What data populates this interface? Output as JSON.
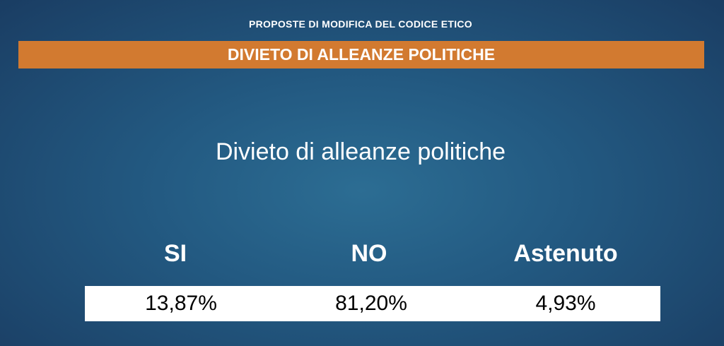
{
  "header": {
    "title": "PROPOSTE DI MODIFICA DEL CODICE ETICO",
    "banner": "DIVIETO DI ALLEANZE POLITICHE"
  },
  "subtitle": "Divieto di alleanze politiche",
  "table": {
    "headers": [
      "SI",
      "NO",
      "Astenuto"
    ],
    "rows": [
      [
        "13,87%",
        "81,20%",
        "4,93%"
      ]
    ]
  }
}
